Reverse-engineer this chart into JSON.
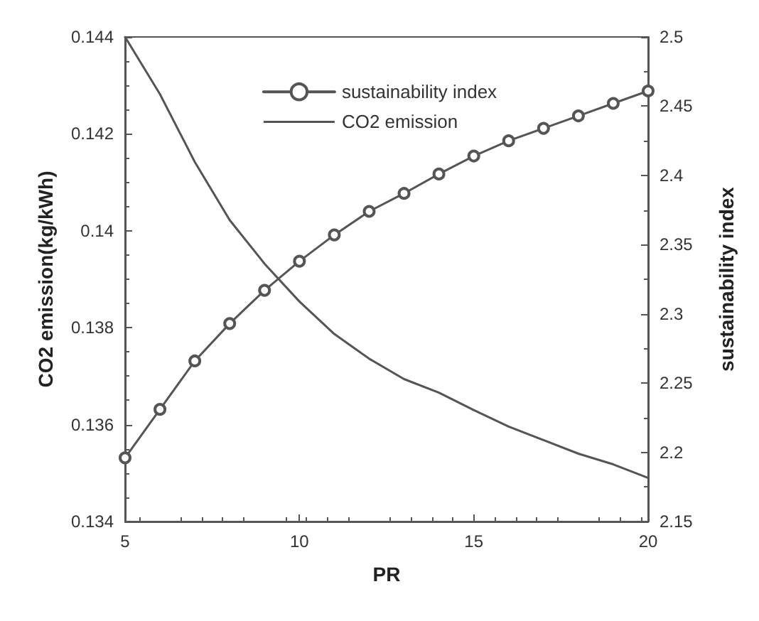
{
  "chart_data": {
    "type": "line",
    "xlabel": "PR",
    "ylabel": "CO2 emission(kg/kWh)",
    "y2label": "sustainability index",
    "x": [
      5,
      6,
      7,
      8,
      9,
      10,
      11,
      12,
      13,
      14,
      15,
      16,
      17,
      18,
      19,
      20
    ],
    "xlim": [
      5,
      20
    ],
    "xticks": [
      5,
      10,
      15,
      20
    ],
    "ylim": [
      0.134,
      0.144
    ],
    "yticks": [
      0.134,
      0.136,
      0.138,
      0.14,
      0.142,
      0.144
    ],
    "y2lim": [
      2.15,
      2.5
    ],
    "y2ticks": [
      2.15,
      2.2,
      2.25,
      2.3,
      2.35,
      2.4,
      2.45,
      2.5
    ],
    "legend": "top",
    "grid": false,
    "line_style": "solid",
    "series": [
      {
        "name": "sustainability index",
        "color": "#555555",
        "axis": "y2",
        "marker": "circle",
        "values": [
          2.196,
          2.231,
          2.266,
          2.293,
          2.317,
          2.338,
          2.357,
          2.374,
          2.387,
          2.401,
          2.414,
          2.425,
          2.434,
          2.443,
          2.452,
          2.461
        ]
      },
      {
        "name": "CO2 emission",
        "color": "#555555",
        "marker": "none",
        "values": [
          0.144,
          0.14282,
          0.14142,
          0.14022,
          0.13932,
          0.13854,
          0.13787,
          0.13736,
          0.13694,
          0.13666,
          0.1363,
          0.13596,
          0.13568,
          0.1354,
          0.13518,
          0.1349
        ]
      }
    ]
  }
}
